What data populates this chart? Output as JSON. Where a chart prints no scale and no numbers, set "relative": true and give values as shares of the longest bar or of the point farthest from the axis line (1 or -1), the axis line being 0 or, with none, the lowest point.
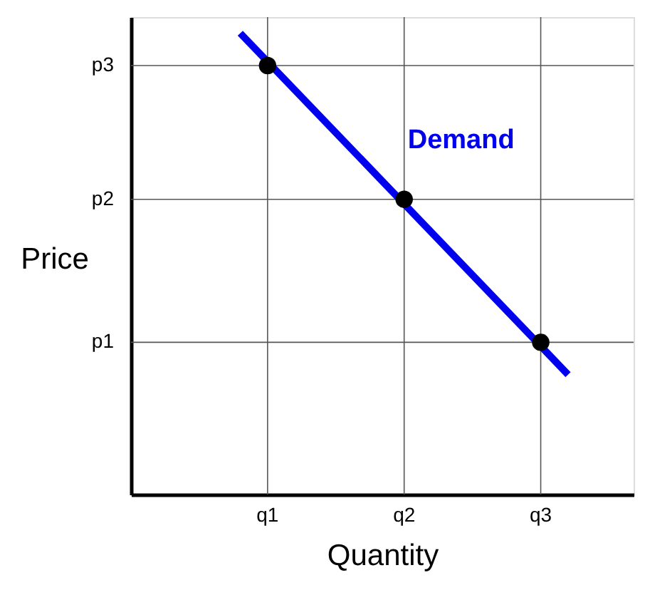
{
  "chart_data": {
    "type": "line",
    "xlabel": "Quantity",
    "ylabel": "Price",
    "relative": true,
    "categories": [
      null,
      null,
      null,
      null,
      null,
      "q1",
      null,
      null,
      null,
      null,
      "q2",
      null,
      null,
      null,
      null,
      "q3",
      null,
      null
    ],
    "ref_lines": [
      {
        "axis": "x",
        "value": "q1"
      },
      {
        "axis": "x",
        "value": "q2"
      },
      {
        "axis": "x",
        "value": "q3"
      },
      {
        "axis": "y",
        "value": 0.33,
        "label": "p1"
      },
      {
        "axis": "y",
        "value": 0.64,
        "label": "p2"
      },
      {
        "axis": "y",
        "value": 0.93,
        "label": "p3"
      }
    ],
    "series": [
      {
        "name": "Demand",
        "color": "#0000ee",
        "values": [
          null,
          null,
          null,
          null,
          1.0,
          null,
          null,
          null,
          null,
          null,
          null,
          null,
          null,
          null,
          null,
          null,
          0.26,
          null
        ]
      },
      {
        "type": "scatter",
        "color": "#000000",
        "marker": "circle",
        "values": [
          null,
          null,
          null,
          null,
          null,
          0.93,
          null,
          null,
          null,
          null,
          0.64,
          null,
          null,
          null,
          null,
          0.33,
          null,
          null
        ]
      }
    ]
  }
}
